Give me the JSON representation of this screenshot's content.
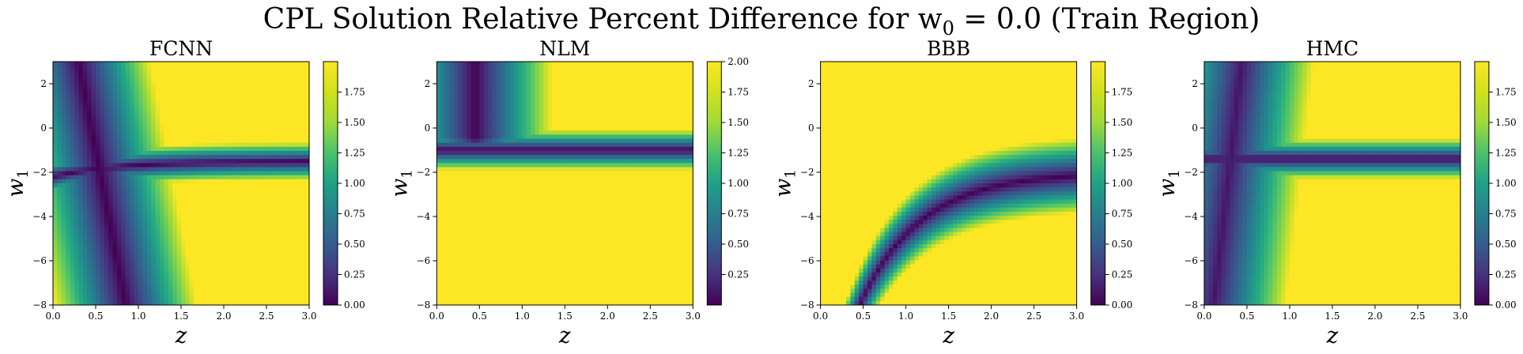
{
  "figure": {
    "title": "CPL Solution Relative Percent Difference for w",
    "title_sub": "0",
    "title_rest": " = 0.0 (Train Region)"
  },
  "chart_data": [
    {
      "type": "heatmap",
      "title": "FCNN",
      "xlabel": "z",
      "ylabel": "w",
      "ylabel_sub": "1",
      "xlim": [
        0.0,
        3.0
      ],
      "ylim": [
        -8,
        3
      ],
      "xticks": [
        "0.0",
        "0.5",
        "1.0",
        "1.5",
        "2.0",
        "2.5",
        "3.0"
      ],
      "yticks": [
        "2",
        "0",
        "−2",
        "−4",
        "−6",
        "−8"
      ],
      "colorbar": {
        "min": 0.0,
        "max": 2.0,
        "ticks": [
          "0.00",
          "0.25",
          "0.50",
          "0.75",
          "1.00",
          "1.25",
          "1.50",
          "1.75"
        ]
      },
      "pattern": "fcnn"
    },
    {
      "type": "heatmap",
      "title": "NLM",
      "xlabel": "z",
      "ylabel": "w",
      "ylabel_sub": "1",
      "xlim": [
        0.0,
        3.0
      ],
      "ylim": [
        -8,
        3
      ],
      "xticks": [
        "0.0",
        "0.5",
        "1.0",
        "1.5",
        "2.0",
        "2.5",
        "3.0"
      ],
      "yticks": [
        "2",
        "0",
        "−2",
        "−4",
        "−6",
        "−8"
      ],
      "colorbar": {
        "min": 0.0,
        "max": 2.0,
        "ticks": [
          "0.25",
          "0.50",
          "0.75",
          "1.00",
          "1.25",
          "1.50",
          "1.75",
          "2.00"
        ]
      },
      "pattern": "nlm"
    },
    {
      "type": "heatmap",
      "title": "BBB",
      "xlabel": "z",
      "ylabel": "w",
      "ylabel_sub": "1",
      "xlim": [
        0.0,
        3.0
      ],
      "ylim": [
        -8,
        3
      ],
      "xticks": [
        "0.0",
        "0.5",
        "1.0",
        "1.5",
        "2.0",
        "2.5",
        "3.0"
      ],
      "yticks": [
        "2",
        "0",
        "−2",
        "−4",
        "−6",
        "−8"
      ],
      "colorbar": {
        "min": 0.0,
        "max": 2.0,
        "ticks": [
          "0.00",
          "0.25",
          "0.50",
          "0.75",
          "1.00",
          "1.25",
          "1.50",
          "1.75"
        ]
      },
      "pattern": "bbb"
    },
    {
      "type": "heatmap",
      "title": "HMC",
      "xlabel": "z",
      "ylabel": "w",
      "ylabel_sub": "1",
      "xlim": [
        0.0,
        3.0
      ],
      "ylim": [
        -8,
        3
      ],
      "xticks": [
        "0.0",
        "0.5",
        "1.0",
        "1.5",
        "2.0",
        "2.5",
        "3.0"
      ],
      "yticks": [
        "2",
        "0",
        "−2",
        "−4",
        "−6",
        "−8"
      ],
      "colorbar": {
        "min": 0.0,
        "max": 2.0,
        "ticks": [
          "0.00",
          "0.25",
          "0.50",
          "0.75",
          "1.00",
          "1.25",
          "1.50",
          "1.75"
        ]
      },
      "pattern": "hmc"
    }
  ]
}
